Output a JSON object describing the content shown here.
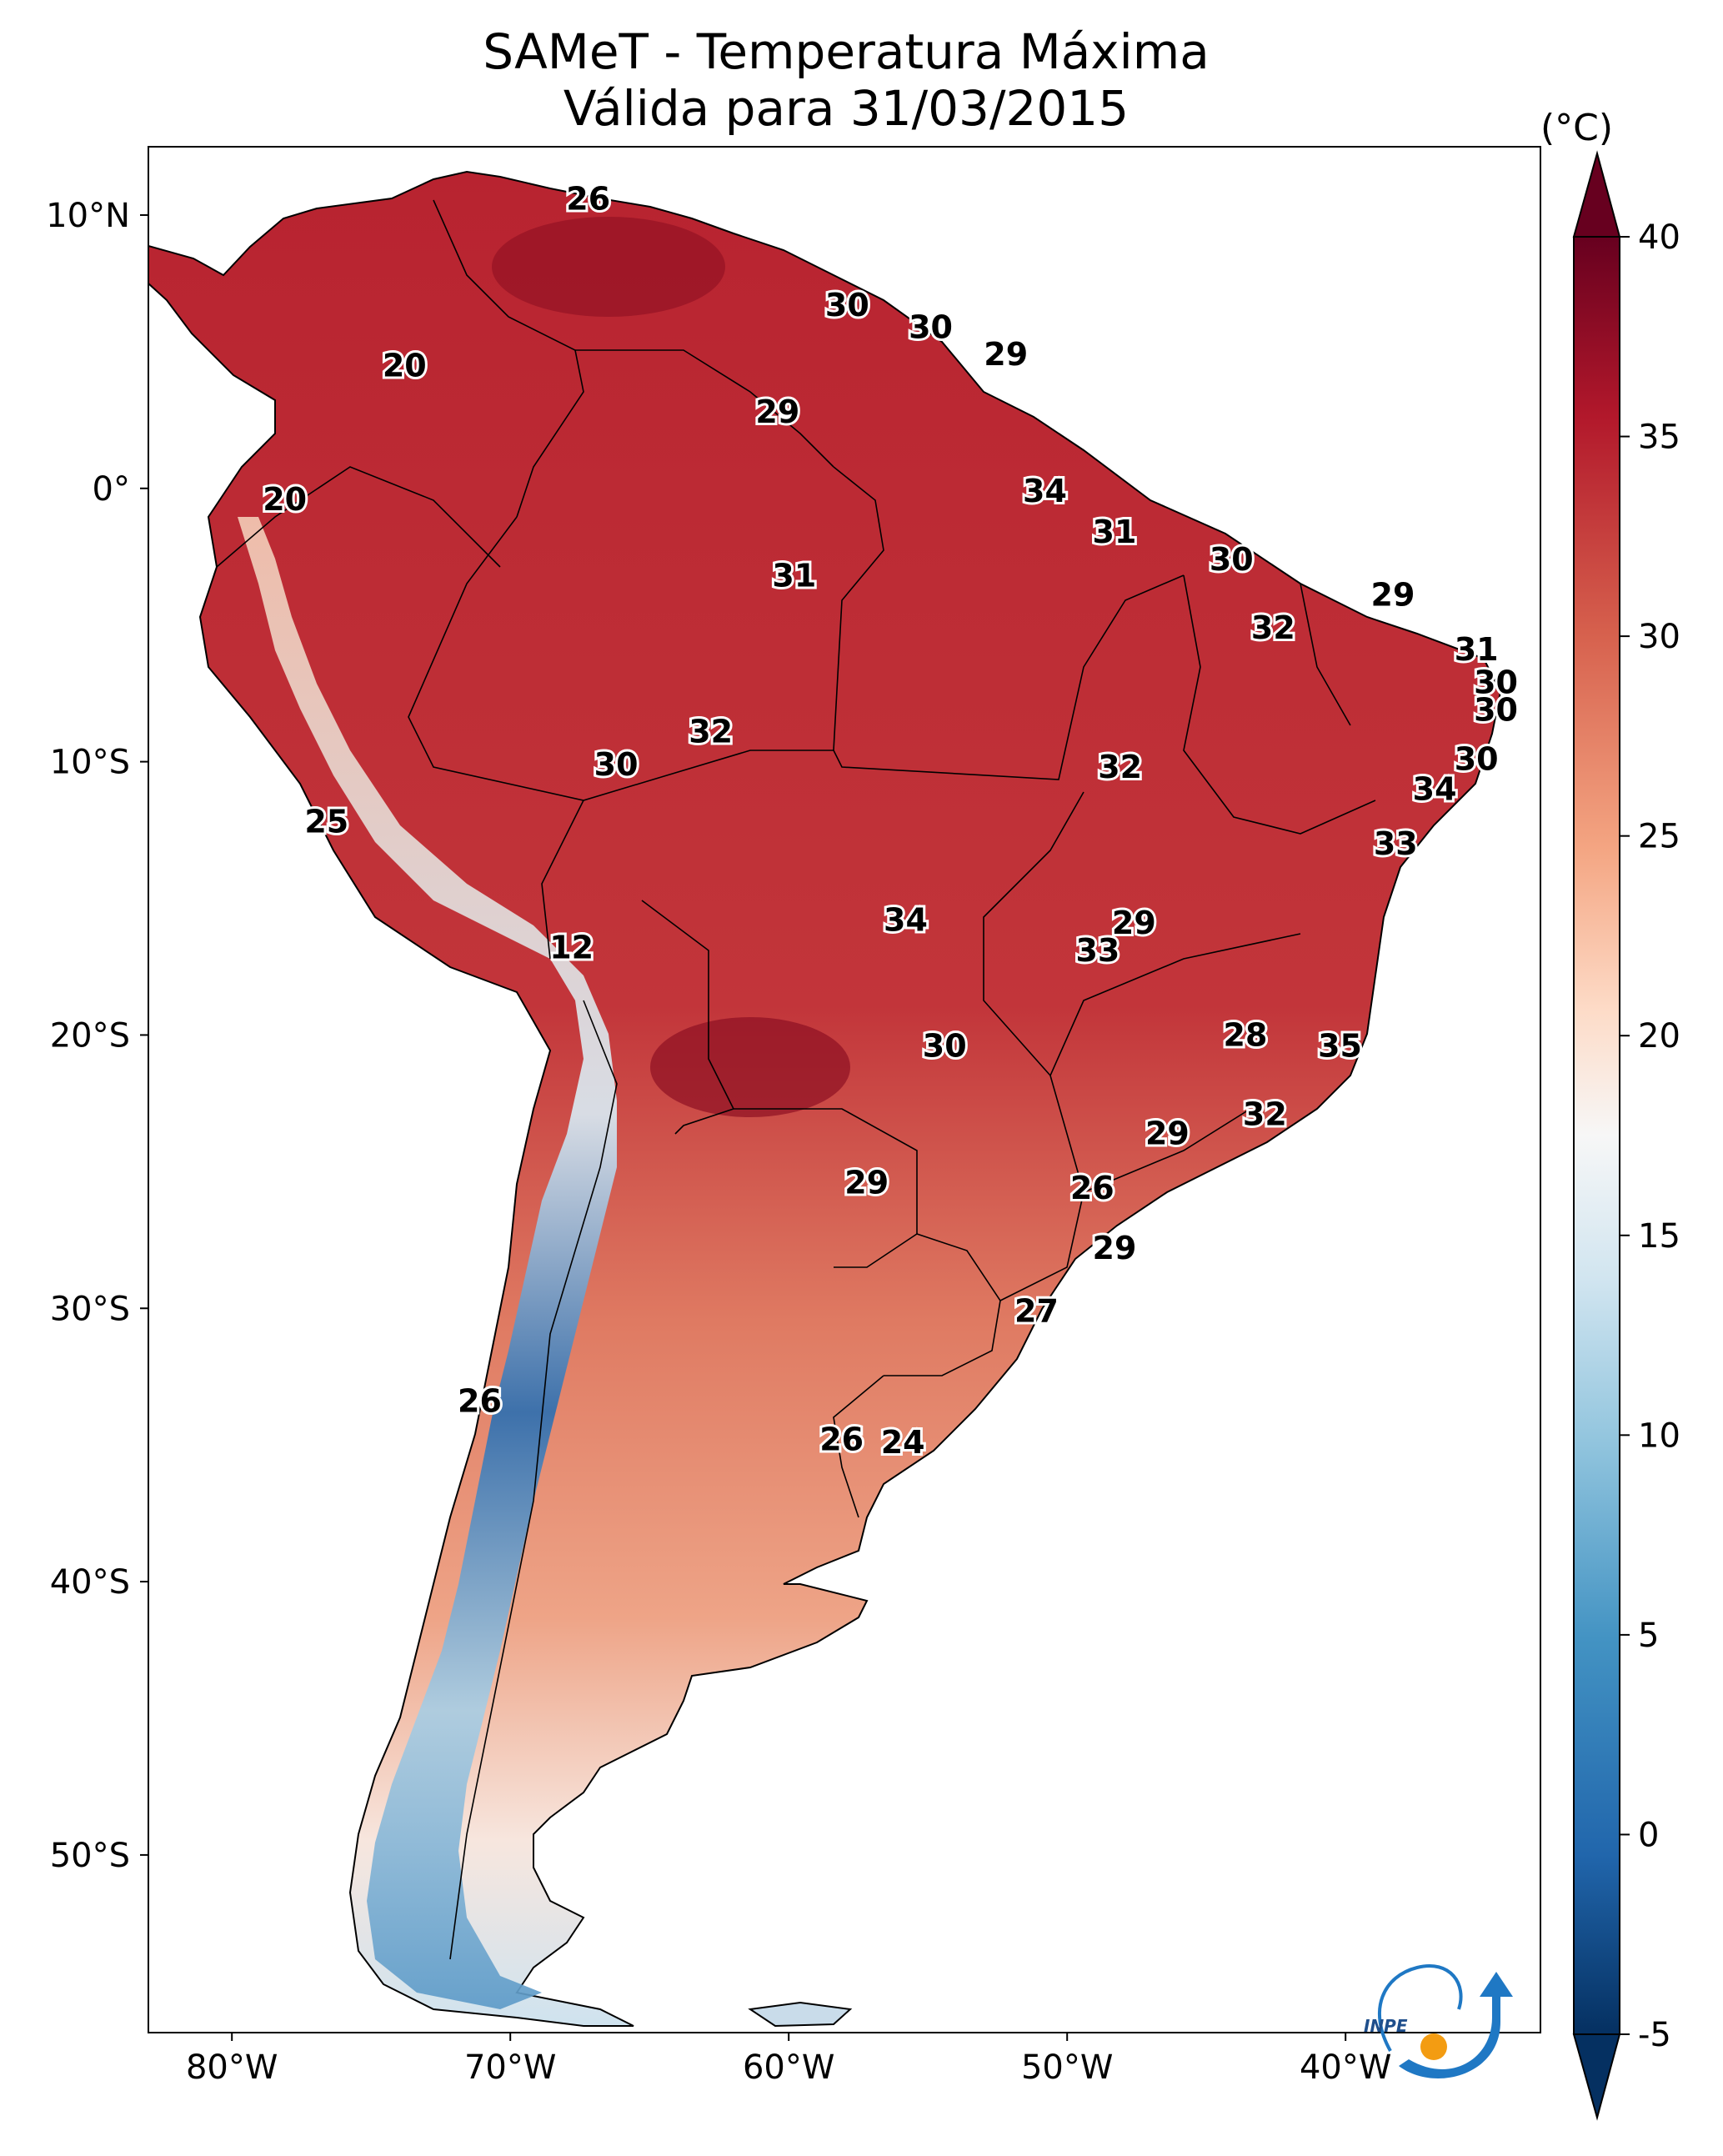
{
  "header": {
    "title_line1": "SAMeT - Temperatura Máxima",
    "title_line2": "Válida para 31/03/2015"
  },
  "map": {
    "region": "South America",
    "lon_range": [
      -83,
      -33
    ],
    "lat_range": [
      -56.5,
      12.5
    ],
    "lon_ticks": [
      -80,
      -70,
      -60,
      -50,
      -40
    ],
    "lon_tick_labels": [
      "80°W",
      "70°W",
      "60°W",
      "50°W",
      "40°W"
    ],
    "lat_ticks": [
      10,
      0,
      -10,
      -20,
      -30,
      -40,
      -50
    ],
    "lat_tick_labels": [
      "10°N",
      "0°",
      "10°S",
      "20°S",
      "30°S",
      "40°S",
      "50°S"
    ],
    "labels": [
      {
        "text": "26",
        "lon": -67.2,
        "lat": 10.6
      },
      {
        "text": "30",
        "lon": -57.9,
        "lat": 6.7
      },
      {
        "text": "30",
        "lon": -54.9,
        "lat": 5.9
      },
      {
        "text": "29",
        "lon": -52.2,
        "lat": 4.9
      },
      {
        "text": "20",
        "lon": -73.8,
        "lat": 4.5
      },
      {
        "text": "29",
        "lon": -60.4,
        "lat": 2.8
      },
      {
        "text": "34",
        "lon": -50.8,
        "lat": -0.1
      },
      {
        "text": "20",
        "lon": -78.1,
        "lat": -0.4
      },
      {
        "text": "31",
        "lon": -48.3,
        "lat": -1.6
      },
      {
        "text": "30",
        "lon": -44.1,
        "lat": -2.6
      },
      {
        "text": "31",
        "lon": -59.8,
        "lat": -3.2
      },
      {
        "text": "29",
        "lon": -38.3,
        "lat": -3.9
      },
      {
        "text": "32",
        "lon": -42.6,
        "lat": -5.1
      },
      {
        "text": "31",
        "lon": -35.3,
        "lat": -5.9
      },
      {
        "text": "30",
        "lon": -34.6,
        "lat": -7.1
      },
      {
        "text": "30",
        "lon": -34.6,
        "lat": -8.1
      },
      {
        "text": "32",
        "lon": -62.8,
        "lat": -8.9
      },
      {
        "text": "30",
        "lon": -66.2,
        "lat": -10.1
      },
      {
        "text": "32",
        "lon": -48.1,
        "lat": -10.2
      },
      {
        "text": "30",
        "lon": -35.3,
        "lat": -9.9
      },
      {
        "text": "34",
        "lon": -36.8,
        "lat": -11.0
      },
      {
        "text": "25",
        "lon": -76.6,
        "lat": -12.2
      },
      {
        "text": "33",
        "lon": -38.2,
        "lat": -13.0
      },
      {
        "text": "34",
        "lon": -55.8,
        "lat": -15.8
      },
      {
        "text": "29",
        "lon": -47.6,
        "lat": -15.9
      },
      {
        "text": "33",
        "lon": -48.9,
        "lat": -16.9
      },
      {
        "text": "12",
        "lon": -67.8,
        "lat": -16.8
      },
      {
        "text": "28",
        "lon": -43.6,
        "lat": -20.0
      },
      {
        "text": "35",
        "lon": -40.2,
        "lat": -20.4
      },
      {
        "text": "30",
        "lon": -54.4,
        "lat": -20.4
      },
      {
        "text": "32",
        "lon": -42.9,
        "lat": -22.9
      },
      {
        "text": "29",
        "lon": -46.4,
        "lat": -23.6
      },
      {
        "text": "29",
        "lon": -57.2,
        "lat": -25.4
      },
      {
        "text": "26",
        "lon": -49.1,
        "lat": -25.6
      },
      {
        "text": "29",
        "lon": -48.3,
        "lat": -27.8
      },
      {
        "text": "27",
        "lon": -51.1,
        "lat": -30.1
      },
      {
        "text": "26",
        "lon": -71.1,
        "lat": -33.4
      },
      {
        "text": "26",
        "lon": -58.1,
        "lat": -34.8
      },
      {
        "text": "24",
        "lon": -55.9,
        "lat": -34.9
      }
    ]
  },
  "colorbar": {
    "unit": "(°C)",
    "min": -5,
    "max": 40,
    "ticks": [
      40,
      35,
      30,
      25,
      20,
      15,
      10,
      5,
      0,
      -5
    ],
    "tick_labels": [
      "40",
      "35",
      "30",
      "25",
      "20",
      "15",
      "10",
      "5",
      "0",
      "-5"
    ],
    "colors": [
      "#053061",
      "#2166ac",
      "#4393c3",
      "#92c5de",
      "#d1e5f0",
      "#f7f7f7",
      "#fddbc7",
      "#f4a582",
      "#d6604d",
      "#b2182b",
      "#67001f"
    ]
  },
  "logo": {
    "text": "INPE"
  }
}
